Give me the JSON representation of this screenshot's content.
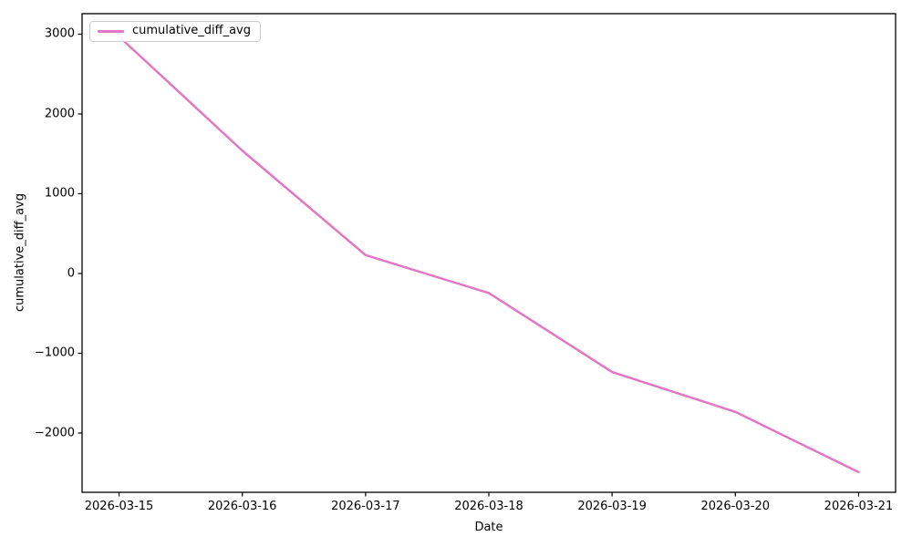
{
  "figure": {
    "background": "#ffffff",
    "spine_color": "#000000",
    "text_color": "#000000"
  },
  "chart_data": {
    "type": "line",
    "title": "",
    "xlabel": "Date",
    "ylabel": "cumulative_diff_avg",
    "grid": false,
    "legend": {
      "position": "upper left",
      "entries": [
        {
          "label": "cumulative_diff_avg",
          "color": "#e377c2"
        }
      ]
    },
    "categories": [
      "2026-03-15",
      "2026-03-16",
      "2026-03-17",
      "2026-03-18",
      "2026-03-19",
      "2026-03-20",
      "2026-03-21"
    ],
    "series": [
      {
        "name": "cumulative_diff_avg",
        "color": "#e377c2",
        "line_width": 2.5,
        "x": [
          0,
          1,
          2,
          3,
          4,
          5,
          6
        ],
        "values": [
          2970,
          1540,
          230,
          -245,
          -1235,
          -1735,
          -2490
        ]
      }
    ],
    "x_ticks": [
      0,
      1,
      2,
      3,
      4,
      5,
      6
    ],
    "y_ticks": [
      {
        "value": 3000,
        "label": "3000"
      },
      {
        "value": 2000,
        "label": "2000"
      },
      {
        "value": 1000,
        "label": "1000"
      },
      {
        "value": 0,
        "label": "0"
      },
      {
        "value": -1000,
        "label": "−1000"
      },
      {
        "value": -2000,
        "label": "−2000"
      }
    ],
    "xlim": [
      -0.3,
      6.3
    ],
    "ylim": [
      -2743,
      3257
    ]
  }
}
